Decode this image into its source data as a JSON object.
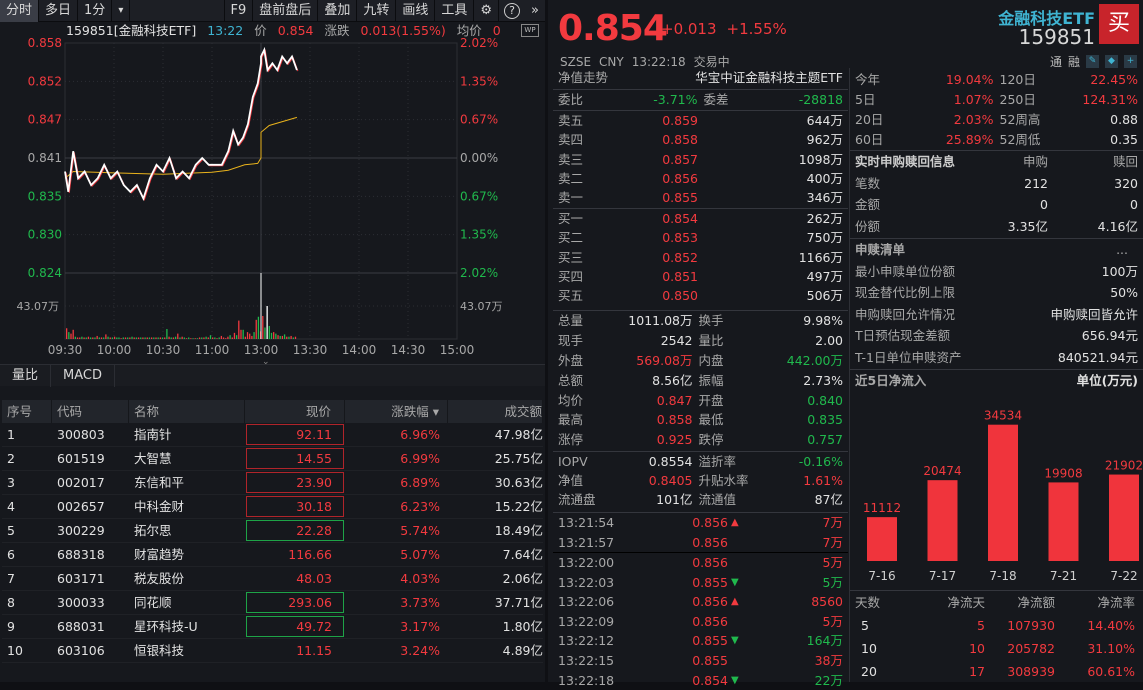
{
  "toolbar": {
    "tabs": [
      "分时",
      "多日",
      "1分"
    ],
    "dropdown": "▾",
    "right": [
      "F9",
      "盘前盘后",
      "叠加",
      "九转",
      "画线",
      "工具"
    ],
    "gear": "⚙",
    "help": "?",
    "more": "»"
  },
  "info": {
    "code_name": "159851[金融科技ETF]",
    "time": "13:22",
    "price_label": "价",
    "price": "0.854",
    "change_label": "涨跌",
    "change": "0.013(1.55%)",
    "avg_label": "均价",
    "avg": "0"
  },
  "wp_badge": "WP",
  "chart_data": {
    "type": "line",
    "title": "",
    "xlabel": "",
    "ylabel": "",
    "ylim": [
      0.824,
      0.858
    ],
    "prev_close": 0.841,
    "y_ticks_left": [
      "0.858",
      "0.852",
      "0.847",
      "0.841",
      "0.835",
      "0.830",
      "0.824"
    ],
    "y_ticks_right": [
      "2.02%",
      "1.35%",
      "0.67%",
      "0.00%",
      "0.67%",
      "1.35%",
      "2.02%"
    ],
    "volume_tick": "43.07万",
    "x_ticks": [
      "09:30",
      "10:00",
      "10:30",
      "11:00",
      "13:00",
      "13:30",
      "14:00",
      "14:30",
      "15:00"
    ],
    "price": {
      "x": [
        "09:30",
        "09:32",
        "09:35",
        "09:38",
        "09:42",
        "09:46",
        "09:50",
        "09:54",
        "09:58",
        "10:02",
        "10:06",
        "10:10",
        "10:14",
        "10:18",
        "10:22",
        "10:26",
        "10:30",
        "10:34",
        "10:38",
        "10:42",
        "10:46",
        "10:50",
        "10:54",
        "10:58",
        "11:02",
        "11:06",
        "11:10",
        "11:13",
        "11:16",
        "11:19",
        "11:22",
        "11:25",
        "11:28",
        "11:30",
        "13:00",
        "13:02",
        "13:04",
        "13:07",
        "13:10",
        "13:13",
        "13:16",
        "13:19",
        "13:22"
      ],
      "y": [
        0.839,
        0.836,
        0.842,
        0.838,
        0.839,
        0.837,
        0.838,
        0.84,
        0.838,
        0.839,
        0.837,
        0.836,
        0.837,
        0.835,
        0.838,
        0.84,
        0.839,
        0.841,
        0.838,
        0.839,
        0.838,
        0.84,
        0.841,
        0.84,
        0.84,
        0.84,
        0.842,
        0.845,
        0.843,
        0.844,
        0.846,
        0.85,
        0.852,
        0.855,
        0.856,
        0.857,
        0.854,
        0.855,
        0.854,
        0.856,
        0.855,
        0.856,
        0.854
      ]
    },
    "avg": {
      "x": [
        "09:30",
        "09:35",
        "10:00",
        "10:30",
        "11:00",
        "11:10",
        "11:20",
        "11:28",
        "11:30",
        "13:00",
        "13:05",
        "13:22"
      ],
      "y": [
        0.838,
        0.839,
        0.8388,
        0.8386,
        0.8389,
        0.8392,
        0.84,
        0.8402,
        0.841,
        0.8448,
        0.8458,
        0.847
      ]
    },
    "volume": {
      "values": [
        14,
        9,
        7,
        12,
        3,
        2,
        2,
        3,
        2,
        2,
        3,
        2,
        2,
        2,
        4,
        2,
        2,
        2,
        6,
        3,
        2,
        2,
        3,
        2,
        2,
        1,
        2,
        2,
        2,
        2,
        3,
        2,
        2,
        2,
        2,
        2,
        2,
        2,
        2,
        2,
        2,
        2,
        2,
        2,
        2,
        2,
        13,
        3,
        2,
        2,
        3,
        7,
        2,
        3,
        2,
        1,
        2,
        1,
        1,
        1,
        1,
        2,
        2,
        2,
        3,
        2,
        5,
        2,
        2,
        1,
        2,
        4,
        2,
        1,
        3,
        5,
        2,
        8,
        5,
        24,
        12,
        12,
        3,
        9,
        7,
        4,
        9,
        25,
        29,
        10,
        30,
        15,
        43,
        17,
        8,
        9,
        7,
        5,
        4,
        4,
        6,
        3,
        3,
        4,
        2,
        3
      ],
      "up": [
        1,
        0,
        1,
        1,
        0,
        1,
        1,
        0,
        1,
        0,
        1,
        0,
        1,
        0,
        1,
        0,
        1,
        0,
        1,
        0,
        1,
        0,
        1,
        0,
        0,
        1,
        0,
        1,
        0,
        1,
        0,
        1,
        0,
        1,
        0,
        1,
        0,
        1,
        0,
        1,
        0,
        1,
        0,
        1,
        0,
        1,
        0,
        1,
        0,
        1,
        0,
        1,
        0,
        1,
        0,
        1,
        0,
        1,
        0,
        1,
        0,
        1,
        0,
        1,
        0,
        1,
        0,
        1,
        0,
        1,
        0,
        1,
        1,
        1,
        1,
        0,
        1,
        1,
        0,
        1,
        1,
        0,
        1,
        1,
        1,
        1,
        0,
        1,
        0,
        1,
        1,
        0,
        2,
        0,
        0,
        1,
        0,
        1,
        0,
        1,
        0,
        1,
        0,
        1,
        0,
        1
      ]
    }
  },
  "subtabs": [
    "量比",
    "MACD"
  ],
  "table": {
    "headers": [
      "序号",
      "代码",
      "名称",
      "现价",
      "涨跌幅 ▾",
      "成交额"
    ],
    "rows": [
      [
        "1",
        "300803",
        "指南针",
        "92.11",
        "6.96%",
        "47.98亿",
        "r"
      ],
      [
        "2",
        "601519",
        "大智慧",
        "14.55",
        "6.99%",
        "25.75亿",
        "r"
      ],
      [
        "3",
        "002017",
        "东信和平",
        "23.90",
        "6.89%",
        "30.63亿",
        "r"
      ],
      [
        "4",
        "002657",
        "中科金财",
        "30.18",
        "6.23%",
        "15.22亿",
        "r"
      ],
      [
        "5",
        "300229",
        "拓尔思",
        "22.28",
        "5.74%",
        "18.49亿",
        "g"
      ],
      [
        "6",
        "688318",
        "财富趋势",
        "116.66",
        "5.07%",
        "7.64亿",
        ""
      ],
      [
        "7",
        "603171",
        "税友股份",
        "48.03",
        "4.03%",
        "2.06亿",
        ""
      ],
      [
        "8",
        "300033",
        "同花顺",
        "293.06",
        "3.73%",
        "37.71亿",
        "g"
      ],
      [
        "9",
        "688031",
        "星环科技-U",
        "49.72",
        "3.17%",
        "1.80亿",
        "g"
      ],
      [
        "10",
        "603106",
        "恒银科技",
        "11.15",
        "3.24%",
        "4.89亿",
        ""
      ]
    ]
  },
  "quote": {
    "price": "0.854",
    "change": "+0.013",
    "pct": "+1.55%",
    "name": "金融科技ETF",
    "code": "159851",
    "buy": "买",
    "exchange": "SZSE",
    "currency": "CNY",
    "time": "13:22:18",
    "status": "交易中",
    "tag1": "通",
    "tag2": "融"
  },
  "nav": {
    "label": "净值走势",
    "fund": "华宝中证金融科技主题ETF"
  },
  "weibi": {
    "l1": "委比",
    "v1": "-3.71%",
    "l2": "委差",
    "v2": "-28818"
  },
  "asks": [
    [
      "卖五",
      "0.859",
      "644万"
    ],
    [
      "卖四",
      "0.858",
      "962万"
    ],
    [
      "卖三",
      "0.857",
      "1098万"
    ],
    [
      "卖二",
      "0.856",
      "400万"
    ],
    [
      "卖一",
      "0.855",
      "346万"
    ]
  ],
  "bids": [
    [
      "买一",
      "0.854",
      "262万"
    ],
    [
      "买二",
      "0.853",
      "750万"
    ],
    [
      "买三",
      "0.852",
      "1166万"
    ],
    [
      "买四",
      "0.851",
      "497万"
    ],
    [
      "买五",
      "0.850",
      "506万"
    ]
  ],
  "stats": [
    [
      "总量",
      "1011.08万",
      "w",
      "换手",
      "9.98%",
      "w"
    ],
    [
      "现手",
      "2542",
      "w",
      "量比",
      "2.00",
      "w"
    ],
    [
      "外盘",
      "569.08万",
      "r",
      "内盘",
      "442.00万",
      "g"
    ],
    [
      "总额",
      "8.56亿",
      "w",
      "振幅",
      "2.73%",
      "w"
    ],
    [
      "均价",
      "0.847",
      "r",
      "开盘",
      "0.840",
      "g"
    ],
    [
      "最高",
      "0.858",
      "r",
      "最低",
      "0.835",
      "g"
    ],
    [
      "涨停",
      "0.925",
      "r",
      "跌停",
      "0.757",
      "g"
    ]
  ],
  "etf_stats": [
    [
      "IOPV",
      "0.8554",
      "w",
      "溢折率",
      "-0.16%",
      "g"
    ],
    [
      "净值",
      "0.8405",
      "r",
      "升贴水率",
      "1.61%",
      "r"
    ],
    [
      "流通盘",
      "101亿",
      "w",
      "流通值",
      "87亿",
      "w"
    ]
  ],
  "trades_prev": [
    [
      "13:21:54",
      "0.856",
      "up",
      "7万",
      "r"
    ],
    [
      "13:21:57",
      "0.856",
      "",
      "7万",
      "r"
    ]
  ],
  "trades": [
    [
      "13:22:00",
      "0.856",
      "",
      "5万",
      "r"
    ],
    [
      "13:22:03",
      "0.855",
      "down",
      "5万",
      "g"
    ],
    [
      "13:22:06",
      "0.856",
      "up",
      "8560",
      "r"
    ],
    [
      "13:22:09",
      "0.856",
      "",
      "5万",
      "r"
    ],
    [
      "13:22:12",
      "0.855",
      "down",
      "164万",
      "g"
    ],
    [
      "13:22:15",
      "0.855",
      "",
      "38万",
      "r"
    ],
    [
      "13:22:18",
      "0.854",
      "down",
      "22万",
      "g"
    ]
  ],
  "perf": [
    [
      "今年",
      "19.04%",
      "r",
      "120日",
      "22.45%",
      "r"
    ],
    [
      "5日",
      "1.07%",
      "r",
      "250日",
      "124.31%",
      "r"
    ],
    [
      "20日",
      "2.03%",
      "r",
      "52周高",
      "0.88",
      "w"
    ],
    [
      "60日",
      "25.89%",
      "r",
      "52周低",
      "0.35",
      "w"
    ]
  ],
  "creation": {
    "title": "实时申购赎回信息",
    "h1": "申购",
    "h2": "赎回",
    "rows": [
      [
        "笔数",
        "212",
        "320"
      ],
      [
        "金额",
        "0",
        "0"
      ],
      [
        "份额",
        "3.35亿",
        "4.16亿"
      ]
    ]
  },
  "pcf": {
    "title": "申赎清单",
    "more": "...",
    "rows": [
      [
        "最小申赎单位份额",
        "100万"
      ],
      [
        "现金替代比例上限",
        "50%"
      ],
      [
        "申购赎回允许情况",
        "申购赎回皆允许"
      ],
      [
        "T日预估现金差额",
        "656.94元"
      ],
      [
        "T-1日单位申赎资产",
        "840521.94元"
      ]
    ]
  },
  "flow": {
    "title": "近5日净流入",
    "unit": "单位(万元)",
    "chart_data": {
      "type": "bar",
      "categories": [
        "7-16",
        "7-17",
        "7-18",
        "7-21",
        "7-22"
      ],
      "values": [
        11112,
        20474,
        34534,
        19908,
        21902
      ],
      "color": "#f0343c"
    },
    "headers": [
      "天数",
      "净流天",
      "净流额",
      "净流率"
    ],
    "rows": [
      [
        "5",
        "5",
        "107930",
        "14.40%"
      ],
      [
        "10",
        "10",
        "205782",
        "31.10%"
      ],
      [
        "20",
        "17",
        "308939",
        "60.61%"
      ]
    ]
  },
  "colors": {
    "up": "#f23a3f",
    "down": "#20b94d",
    "accent": "#3fb4d2",
    "avg_line": "#e8b21c",
    "bg": "#16181d"
  }
}
